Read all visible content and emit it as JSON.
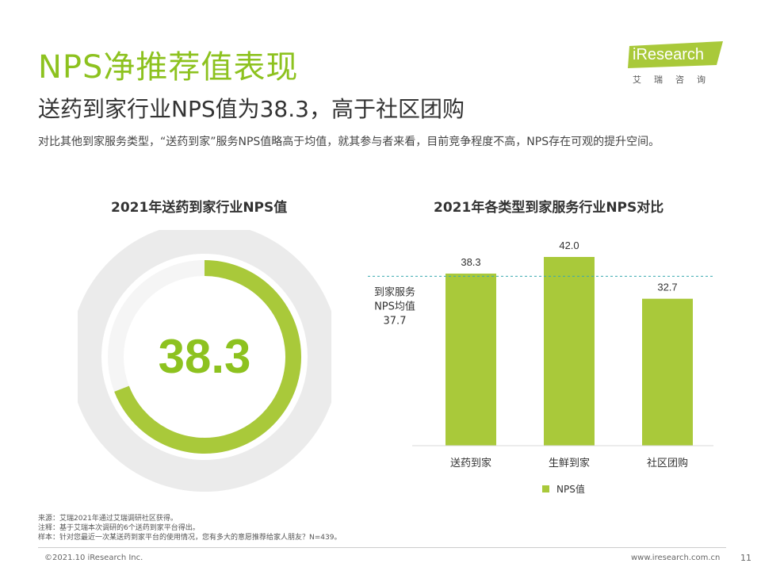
{
  "header": {
    "title": "NPS净推荐值表现",
    "subtitle": "送药到家行业NPS值为38.3，高于社区团购",
    "description": "对比其他到家服务类型，“送药到家”服务NPS值略高于均值，就其参与者来看，目前竞争程度不高，NPS存在可观的提升空间。"
  },
  "logo": {
    "brand": "iResearch",
    "sub": "艾瑞咨询"
  },
  "chart_data": [
    {
      "type": "gauge",
      "title": "2021年送药到家行业NPS值",
      "value": 38.3,
      "value_label": "38.3",
      "range": [
        -100,
        100
      ],
      "colors": {
        "arc": "#a9c93a",
        "track_outer": "#ebebeb",
        "track_inner": "#f5f5f5"
      }
    },
    {
      "type": "bar",
      "title": "2021年各类型到家服务行业NPS对比",
      "categories": [
        "送药到家",
        "生鲜到家",
        "社区团购"
      ],
      "series": [
        {
          "name": "NPS值",
          "values": [
            38.3,
            42.0,
            32.7
          ],
          "labels": [
            "38.3",
            "42.0",
            "32.7"
          ],
          "color": "#a9c93a"
        }
      ],
      "ylim": [
        0,
        48
      ],
      "reference_line": {
        "value": 37.7,
        "label_lines": [
          "到家服务",
          "NPS均值",
          "37.7"
        ],
        "color": "#3aa9b0"
      },
      "legend_position": "bottom"
    }
  ],
  "footer": {
    "notes": [
      "来源：艾瑞2021年通过艾瑞调研社区获得。",
      "注释：基于艾瑞本次调研的6个送药到家平台得出。",
      "样本：针对您最近一次某送药到家平台的使用情况，您有多大的意愿推荐给家人朋友？N=439。"
    ],
    "copyright": "©2021.10 iResearch Inc.",
    "website": "www.iresearch.com.cn",
    "page": "11"
  }
}
